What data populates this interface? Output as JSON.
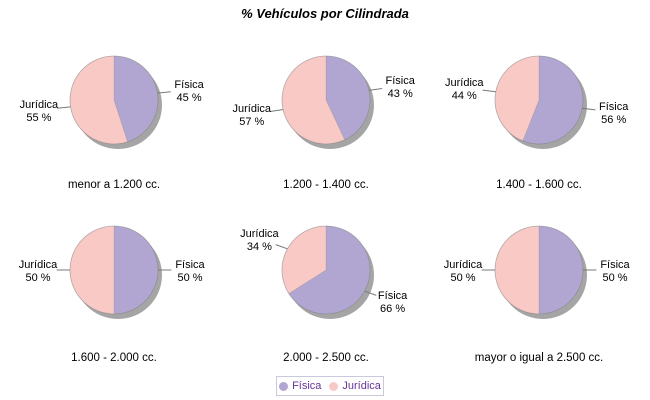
{
  "title": "% Vehículos por Cilindrada",
  "colors": {
    "fisica": "#b1a6d1",
    "juridica": "#f9c9c6",
    "shadow": "#9b9b9b",
    "outline": "#828282",
    "leader_line": "#787878",
    "label_text": "#000000",
    "legend_text": "#663399",
    "legend_border": "#c9c9dd",
    "background": "#ffffff"
  },
  "legend": {
    "items": [
      {
        "name": "Física",
        "color": "#b1a6d1"
      },
      {
        "name": "Jurídica",
        "color": "#f9c9c6"
      }
    ]
  },
  "chart_data": [
    {
      "type": "pie",
      "category": "menor a 1.200 cc.",
      "slices": [
        {
          "name": "Física",
          "pct": 45
        },
        {
          "name": "Jurídica",
          "pct": 55
        }
      ]
    },
    {
      "type": "pie",
      "category": "1.200 - 1.400 cc.",
      "slices": [
        {
          "name": "Física",
          "pct": 43
        },
        {
          "name": "Jurídica",
          "pct": 57
        }
      ]
    },
    {
      "type": "pie",
      "category": "1.400 - 1.600 cc.",
      "slices": [
        {
          "name": "Física",
          "pct": 56
        },
        {
          "name": "Jurídica",
          "pct": 44
        }
      ]
    },
    {
      "type": "pie",
      "category": "1.600 - 2.000 cc.",
      "slices": [
        {
          "name": "Física",
          "pct": 50
        },
        {
          "name": "Jurídica",
          "pct": 50
        }
      ]
    },
    {
      "type": "pie",
      "category": "2.000 - 2.500 cc.",
      "slices": [
        {
          "name": "Física",
          "pct": 66
        },
        {
          "name": "Jurídica",
          "pct": 34
        }
      ]
    },
    {
      "type": "pie",
      "category": "mayor o igual a 2.500 cc.",
      "slices": [
        {
          "name": "Física",
          "pct": 50
        },
        {
          "name": "Jurídica",
          "pct": 50
        }
      ]
    }
  ]
}
